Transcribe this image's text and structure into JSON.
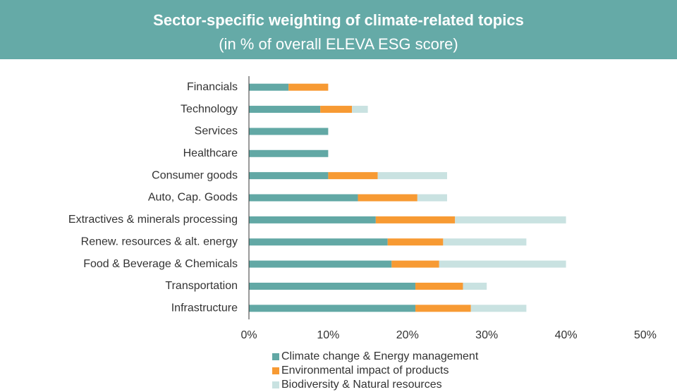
{
  "chart_data": {
    "type": "stacked-barh",
    "title": "Sector-specific weighting of climate-related topics",
    "subtitle": "(in % of overall ELEVA ESG score)",
    "categories": [
      "Financials",
      "Technology",
      "Services",
      "Healthcare",
      "Consumer goods",
      "Auto, Cap. Goods",
      "Extractives & minerals processing",
      "Renew. resources & alt. energy",
      "Food & Beverage & Chemicals",
      "Transportation",
      "Infrastructure"
    ],
    "series": [
      {
        "name": "Climate change & Energy management",
        "color": "#62a8a5",
        "values": [
          5,
          9,
          10,
          10,
          10,
          13.75,
          16,
          17.5,
          18,
          21,
          21
        ]
      },
      {
        "name": "Environmental impact of products",
        "color": "#f79a33",
        "values": [
          5,
          4,
          0,
          0,
          6.25,
          7.5,
          10,
          7,
          6,
          6,
          7
        ]
      },
      {
        "name": "Biodiversity & Natural resources",
        "color": "#c9e2e1",
        "values": [
          0,
          2,
          0,
          0,
          8.75,
          3.75,
          14,
          10.5,
          16,
          3,
          7
        ]
      }
    ],
    "xlim": [
      0,
      50
    ],
    "xticks": [
      {
        "value": 0,
        "label": "0%"
      },
      {
        "value": 10,
        "label": "10%"
      },
      {
        "value": 20,
        "label": "20%"
      },
      {
        "value": 30,
        "label": "30%"
      },
      {
        "value": 40,
        "label": "40%"
      },
      {
        "value": 50,
        "label": "50%"
      }
    ]
  }
}
